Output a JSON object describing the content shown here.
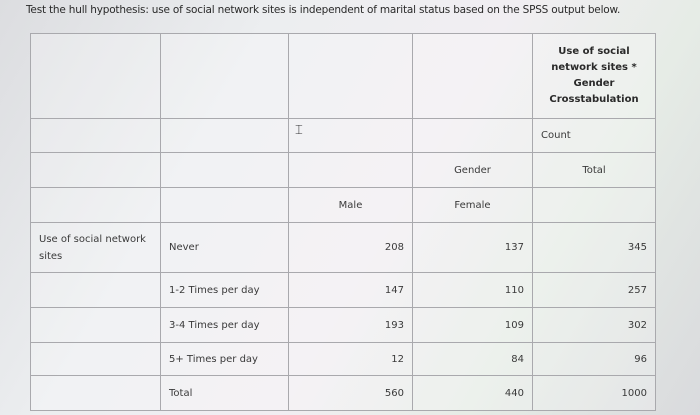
{
  "question": "Test the hull hypothesis: use of social network sites is independent of marital status based on the SPSS output below.",
  "table": {
    "title": "Use of social network sites * Gender Crosstabulation",
    "count_label": "Count",
    "gender_label": "Gender",
    "total_label": "Total",
    "male_label": "Male",
    "female_label": "Female",
    "row_variable": "Use of social network sites",
    "rows": [
      {
        "label": "Never",
        "male": "208",
        "female": "137",
        "total": "345"
      },
      {
        "label": "1-2 Times per day",
        "male": "147",
        "female": "110",
        "total": "257"
      },
      {
        "label": "3-4 Times per day",
        "male": "193",
        "female": "109",
        "total": "302"
      },
      {
        "label": "5+ Times per day",
        "male": "12",
        "female": "84",
        "total": "96"
      },
      {
        "label": "Total",
        "male": "560",
        "female": "440",
        "total": "1000"
      }
    ]
  }
}
